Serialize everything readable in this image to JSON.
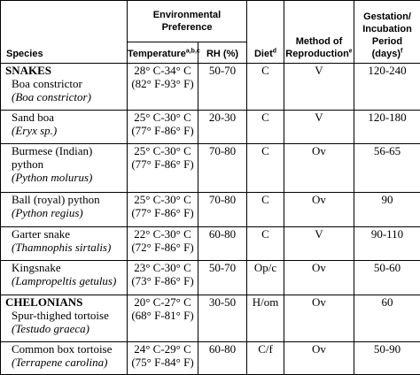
{
  "headers": {
    "species": "Species",
    "env_pref": "Environmental Preference",
    "temperature": "Temperature",
    "temperature_sup": "a,b,c",
    "rh": "RH (%)",
    "diet": "Diet",
    "diet_sup": "d",
    "method_line1": "Method of",
    "method_line2": "Reproduction",
    "method_sup": "e",
    "gest_line1": "Gestation/",
    "gest_line2": "Incubation",
    "gest_line3": "Period",
    "gest_line4": "(days)",
    "gest_sup": "f"
  },
  "rows": [
    {
      "group": "SNAKES",
      "common": "Boa constrictor",
      "scientific": "(Boa constrictor)",
      "temp_c": "28° C-34° C",
      "temp_f": "(82° F-93° F)",
      "rh": "50-70",
      "diet": "C",
      "method": "V",
      "period": "120-240"
    },
    {
      "group": "",
      "common": "Sand boa",
      "scientific": "(Eryx sp.)",
      "temp_c": "25° C-30° C",
      "temp_f": "(77° F-86° F)",
      "rh": "20-30",
      "diet": "C",
      "method": "V",
      "period": "120-180"
    },
    {
      "group": "",
      "common": "Burmese (Indian)",
      "common2": "python",
      "scientific": "(Python molurus)",
      "temp_c": "25° C-30° C",
      "temp_f": "(77° F-86° F)",
      "rh": "70-80",
      "diet": "C",
      "method": "Ov",
      "period": "56-65"
    },
    {
      "group": "",
      "common": "Ball (royal) python",
      "scientific": "(Python regius)",
      "temp_c": "25° C-30° C",
      "temp_f": "(77° F-86° F)",
      "rh": "70-80",
      "diet": "C",
      "method": "Ov",
      "period": "90"
    },
    {
      "group": "",
      "common": "Garter snake",
      "scientific": "(Thamnophis sirtalis)",
      "temp_c": "22° C-30° C",
      "temp_f": "(72° F-86° F)",
      "rh": "60-80",
      "diet": "C",
      "method": "V",
      "period": "90-110"
    },
    {
      "group": "",
      "common": "Kingsnake",
      "scientific": "(Lampropeltis getulus)",
      "temp_c": "23° C-30° C",
      "temp_f": "(73° F-86° F)",
      "rh": "50-70",
      "diet": "Op/c",
      "method": "Ov",
      "period": "50-60"
    },
    {
      "group": "CHELONIANS",
      "common": "Spur-thighed tortoise",
      "scientific": "(Testudo graeca)",
      "temp_c": "20° C-27° C",
      "temp_f": "(68° F-81° F)",
      "rh": "30-50",
      "diet": "H/om",
      "method": "Ov",
      "period": "60"
    },
    {
      "group": "",
      "common": "Common box tortoise",
      "scientific": "(Terrapene carolina)",
      "temp_c": "24° C-29° C",
      "temp_f": "(75° F-84° F)",
      "rh": "60-80",
      "diet": "C/f",
      "method": "Ov",
      "period": "50-90"
    }
  ]
}
